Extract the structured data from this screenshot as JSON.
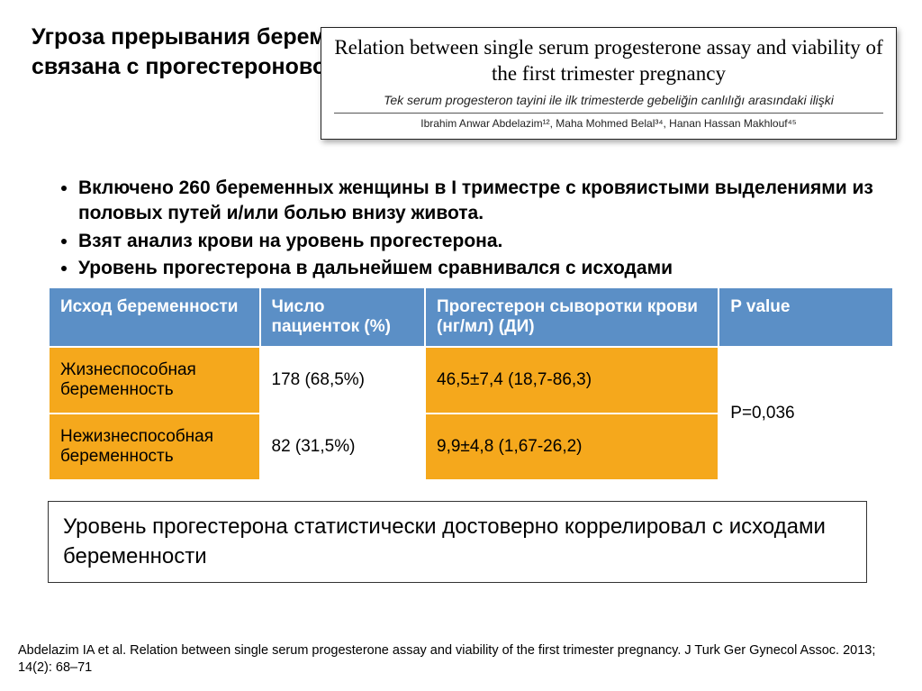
{
  "title": {
    "line1": "Угроза прерывания беременности часто",
    "line2": "связана с прогестероновой недо"
  },
  "inset": {
    "title": "Relation between single serum progesterone assay and viability of the first trimester pregnancy",
    "subtitle": "Tek serum progesteron tayini ile ilk trimesterde gebeliğin canlılığı arasındaki ilişki",
    "authors": "Ibrahim Anwar Abdelazim¹², Maha Mohmed Belal³⁴, Hanan Hassan Makhlouf⁴⁵"
  },
  "bullets": {
    "b1": "Включено 260 беременных женщины в I триместре с кровяистыми выделениями из половых путей и/или болью внизу живота.",
    "b2": "Взят анализ крови на уровень прогестерона.",
    "b3": "Уровень прогестерона в дальнейшем сравнивался с исходами"
  },
  "table": {
    "headers": {
      "h1": "Исход беременности",
      "h2": "Число пациенток (%)",
      "h3": "Прогестерон сыворотки крови (нг/мл) (ДИ)",
      "h4": "P value"
    },
    "row1": {
      "c1": "Жизнеспособная беременность",
      "c2": "178 (68,5%)",
      "c3": "46,5±7,4 (18,7-86,3)"
    },
    "row2": {
      "c1": "Нежизнеспособная беременность",
      "c2": "82 (31,5%)",
      "c3": "9,9±4,8 (1,67-26,2)"
    },
    "pvalue": "P=0,036",
    "col_widths": [
      "230px",
      "180px",
      "320px",
      "190px"
    ],
    "header_bg": "#5b8fc6",
    "header_fg": "#ffffff",
    "highlight_bg": "#f5a81c"
  },
  "conclusion": "Уровень прогестерона статистически достоверно коррелировал с исходами беременности",
  "citation": "Abdelazim IA et al. Relation between single serum progesterone assay and viability of the first trimester pregnancy. J Turk Ger Gynecol Assoc. 2013; 14(2): 68–71"
}
